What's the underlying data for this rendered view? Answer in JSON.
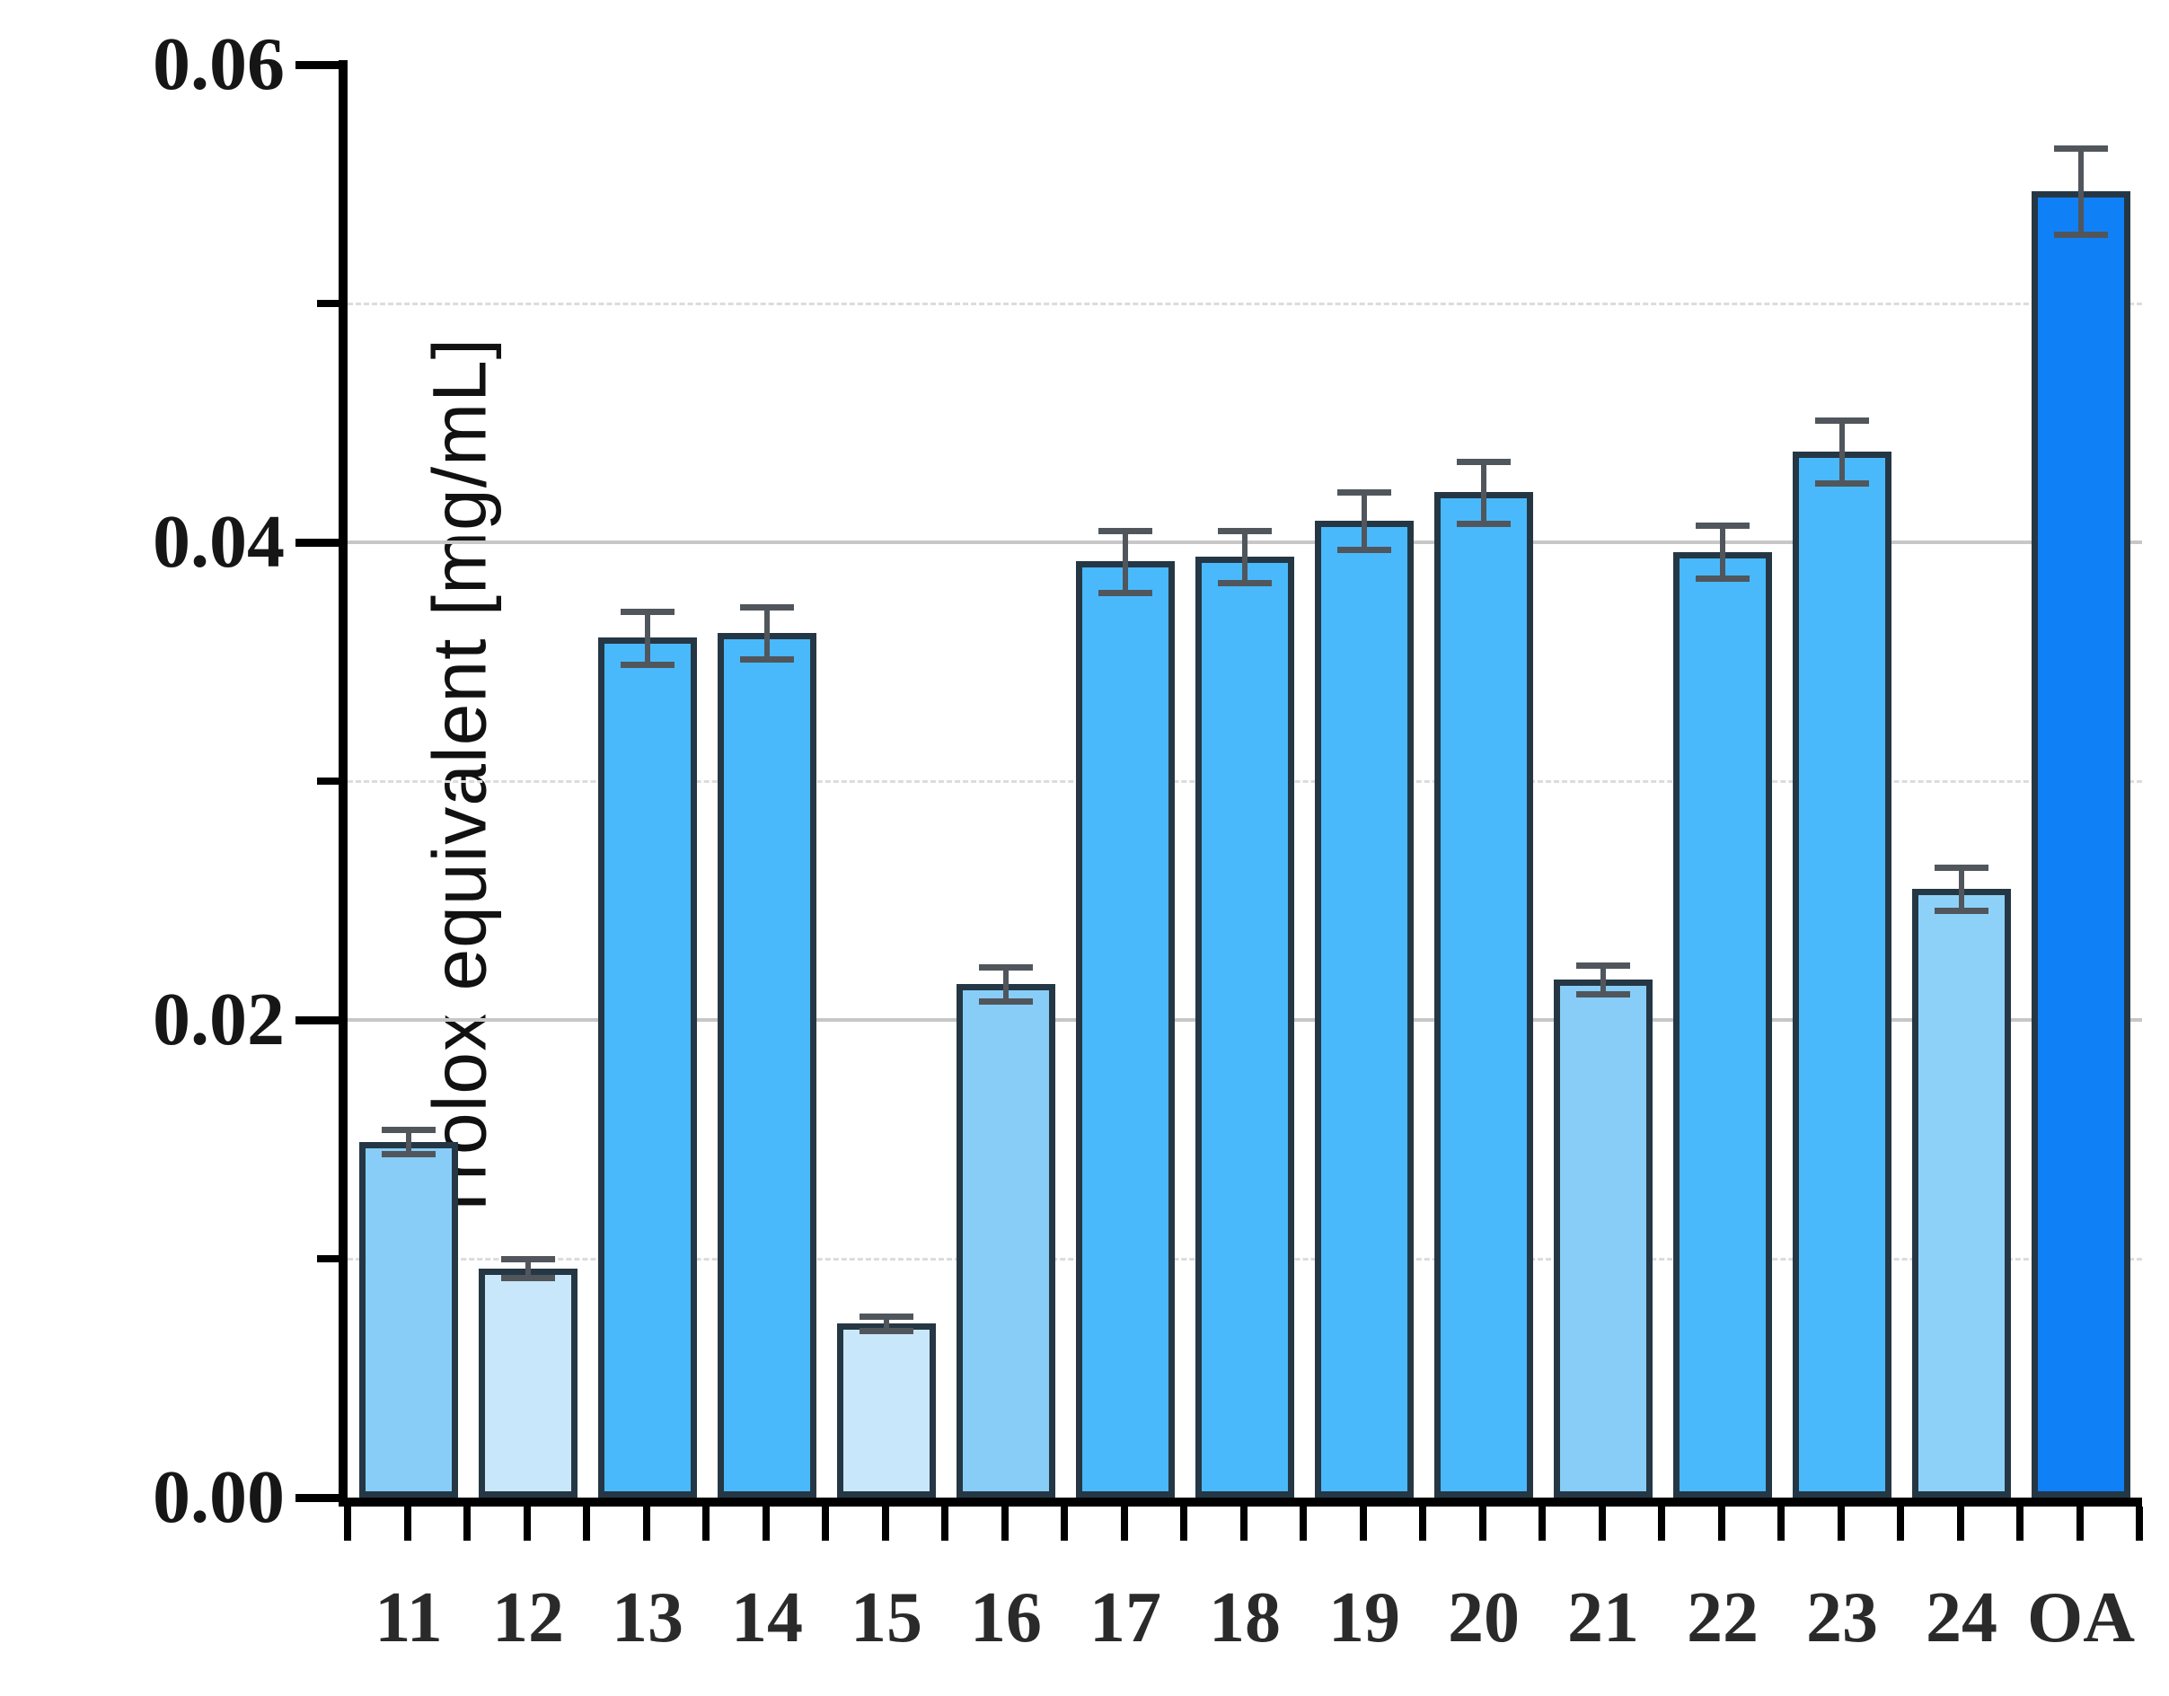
{
  "chart_data": {
    "type": "bar",
    "title": "",
    "xlabel": "",
    "ylabel": "Trolox equivalent [mg/mL]",
    "ylim": [
      0,
      0.06
    ],
    "grid": "horizontal",
    "legend": "none",
    "categories": [
      "11",
      "12",
      "13",
      "14",
      "15",
      "16",
      "17",
      "18",
      "19",
      "20",
      "21",
      "22",
      "23",
      "24",
      "OA"
    ],
    "values": [
      0.0149,
      0.0096,
      0.036,
      0.0362,
      0.0073,
      0.0215,
      0.0392,
      0.0394,
      0.0409,
      0.0421,
      0.0217,
      0.0396,
      0.0438,
      0.0255,
      0.0547
    ],
    "errors": [
      0.0005,
      0.0004,
      0.0011,
      0.0011,
      0.0003,
      0.0007,
      0.0013,
      0.0011,
      0.0012,
      0.0013,
      0.0006,
      0.0011,
      0.0013,
      0.0009,
      0.0018
    ],
    "bar_colors": [
      "#87cdf7",
      "#c9e7fb",
      "#49b9fc",
      "#49b9fc",
      "#c9e7fb",
      "#87cdf7",
      "#49b9fc",
      "#49b9fc",
      "#49b9fc",
      "#49b9fc",
      "#87cdf7",
      "#49b9fc",
      "#49b9fc",
      "#8ed1f8",
      "#0f80f5"
    ],
    "bar_edge_color": "#253744",
    "error_bar_color": "#50565c",
    "axis_color": "#000000",
    "gridline_solid_color": "#c7c7c7",
    "gridline_dashed_color": "#dcdcdc",
    "ytick_labels": [
      "0.00",
      "0.02",
      "0.04",
      "0.06"
    ],
    "ytick_values": [
      0.0,
      0.02,
      0.04,
      0.06
    ],
    "yticks_minor": [
      0.01,
      0.03,
      0.05
    ],
    "gridlines_solid_at": [
      0.02,
      0.04
    ],
    "gridlines_dashed_at": [
      0.01,
      0.03,
      0.05
    ]
  }
}
